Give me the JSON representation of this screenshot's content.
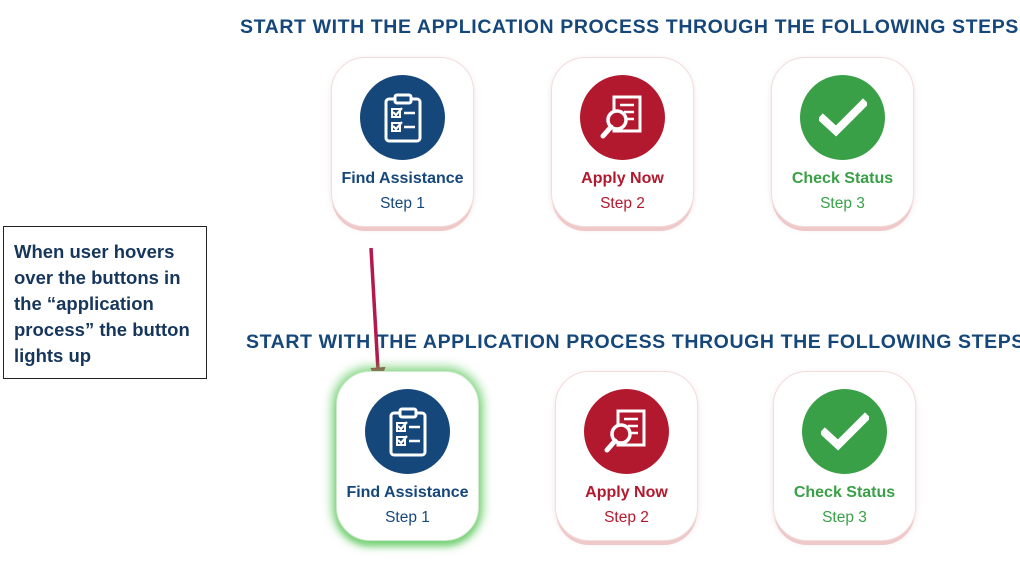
{
  "heading_top": "START WITH THE APPLICATION PROCESS THROUGH THE FOLLOWING STEPS",
  "heading_bottom": "START WITH THE APPLICATION PROCESS THROUGH THE FOLLOWING STEPS",
  "note": "When user hovers over the buttons in the “application process” the button lights up",
  "colors": {
    "heading": "#16477a",
    "step1": "#16477a",
    "step2": "#b3192e",
    "step3": "#3aa047",
    "arrow": "#b3194b",
    "hover_glow": "#5cc85c"
  },
  "top_row": {
    "find": {
      "title": "Find Assistance",
      "step": "Step 1",
      "icon": "clipboard-checklist-icon"
    },
    "apply": {
      "title": "Apply Now",
      "step": "Step 2",
      "icon": "document-magnifier-icon"
    },
    "check": {
      "title": "Check Status",
      "step": "Step 3",
      "icon": "checkmark-icon"
    }
  },
  "bottom_row": {
    "find": {
      "title": "Find Assistance",
      "step": "Step 1",
      "icon": "clipboard-checklist-icon",
      "state": "hover"
    },
    "apply": {
      "title": "Apply Now",
      "step": "Step 2",
      "icon": "document-magnifier-icon"
    },
    "check": {
      "title": "Check Status",
      "step": "Step 3",
      "icon": "checkmark-icon"
    }
  }
}
